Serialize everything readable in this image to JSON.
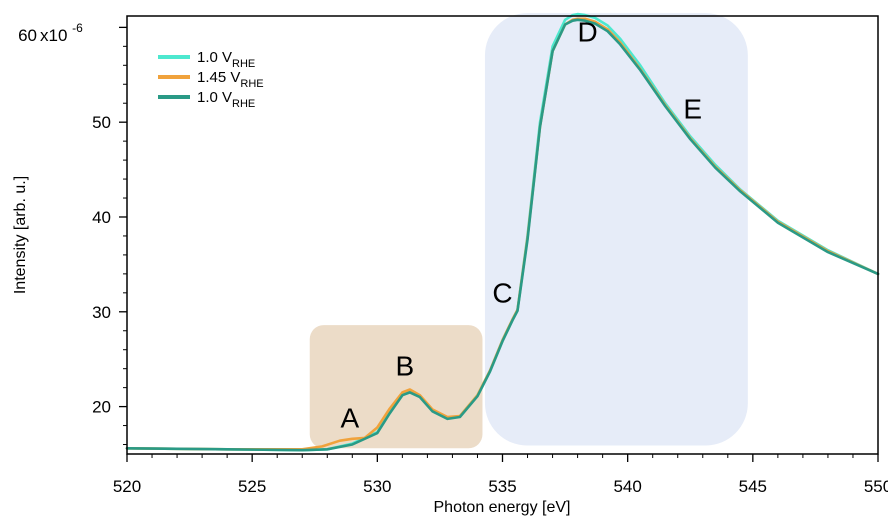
{
  "chart_data": {
    "type": "line",
    "xlabel": "Photon energy [eV]",
    "ylabel": "Intensity [arb. u.]",
    "y_multiplier_label": "x10",
    "y_multiplier_exponent": "-6",
    "xlim": [
      520,
      550
    ],
    "ylim": [
      15,
      61.2
    ],
    "x_ticks": [
      520,
      525,
      530,
      535,
      540,
      545,
      550
    ],
    "y_ticks": [
      20,
      30,
      40,
      50,
      60
    ],
    "y_tick_labels": [
      "20",
      "30",
      "40",
      "50",
      "60"
    ],
    "grid": false,
    "legend_position": "top-left",
    "series": [
      {
        "name": "1.0 V",
        "name_sub": "RHE",
        "color": "#4de8cf",
        "x": [
          520,
          524,
          527,
          528,
          529,
          530,
          530.5,
          531,
          531.3,
          531.7,
          532.2,
          532.8,
          533.3,
          534,
          534.5,
          535,
          535.4,
          535.6,
          536,
          536.5,
          537,
          537.5,
          537.8,
          538,
          538.3,
          538.7,
          539.2,
          539.7,
          540.5,
          541.5,
          542.5,
          543.5,
          544.5,
          546,
          548,
          550
        ],
        "y": [
          15.6,
          15.5,
          15.4,
          15.5,
          16.1,
          17.3,
          19.5,
          21.3,
          21.6,
          21.1,
          19.6,
          18.8,
          19.0,
          21.2,
          23.8,
          27.0,
          29.2,
          30.2,
          38.0,
          50.0,
          58.0,
          60.8,
          61.3,
          61.4,
          61.3,
          61.0,
          60.2,
          58.8,
          56.0,
          52.0,
          48.5,
          45.5,
          42.9,
          39.6,
          36.5,
          34.0
        ]
      },
      {
        "name": "1.45 V",
        "name_sub": "RHE",
        "color": "#f0a23c",
        "x": [
          520,
          524,
          527,
          527.8,
          528.5,
          529,
          529.5,
          530,
          530.5,
          531,
          531.3,
          531.7,
          532.2,
          532.8,
          533.3,
          534,
          534.5,
          535,
          535.4,
          535.6,
          536,
          536.5,
          537,
          537.5,
          537.8,
          538,
          538.3,
          538.7,
          539.2,
          539.7,
          540.5,
          541.5,
          542.5,
          543.5,
          544.5,
          546,
          548,
          550
        ],
        "y": [
          15.6,
          15.5,
          15.5,
          15.8,
          16.4,
          16.6,
          16.7,
          17.8,
          19.8,
          21.5,
          21.8,
          21.2,
          19.7,
          18.9,
          19.0,
          21.2,
          23.8,
          27.0,
          29.2,
          30.2,
          37.8,
          49.5,
          57.5,
          60.3,
          60.8,
          60.9,
          60.9,
          60.6,
          59.8,
          58.4,
          55.6,
          51.8,
          48.3,
          45.3,
          42.8,
          39.5,
          36.4,
          34.0
        ]
      },
      {
        "name": "1.0 V",
        "name_sub": "RHE",
        "color": "#2a9a86",
        "x": [
          520,
          524,
          527,
          528,
          529,
          530,
          530.5,
          531,
          531.3,
          531.7,
          532.2,
          532.8,
          533.3,
          534,
          534.5,
          535,
          535.4,
          535.6,
          536,
          536.5,
          537,
          537.5,
          537.8,
          538,
          538.3,
          538.7,
          539.2,
          539.7,
          540.5,
          541.5,
          542.5,
          543.5,
          544.5,
          546,
          548,
          550
        ],
        "y": [
          15.6,
          15.5,
          15.4,
          15.5,
          16.0,
          17.2,
          19.3,
          21.2,
          21.5,
          21.0,
          19.5,
          18.7,
          18.9,
          21.1,
          23.7,
          26.9,
          29.1,
          30.1,
          37.6,
          49.5,
          57.5,
          60.3,
          60.7,
          60.8,
          60.7,
          60.4,
          59.6,
          58.2,
          55.5,
          51.7,
          48.2,
          45.2,
          42.7,
          39.4,
          36.3,
          34.0
        ]
      }
    ],
    "regions": [
      {
        "x_range": [
          527.3,
          534.2
        ],
        "y_range": [
          15.6,
          28.6
        ],
        "color": "#ecdcc8"
      },
      {
        "x_range": [
          534.3,
          544.8
        ],
        "y_range": [
          15.9,
          61.5
        ],
        "color": "#e6ecf8"
      }
    ],
    "annotations": [
      {
        "text": "A",
        "x": 528.9,
        "y": 17.8
      },
      {
        "text": "B",
        "x": 531.1,
        "y": 23.3
      },
      {
        "text": "C",
        "x": 535.0,
        "y": 31.0
      },
      {
        "text": "D",
        "x": 538.4,
        "y": 58.5
      },
      {
        "text": "E",
        "x": 542.6,
        "y": 50.4
      }
    ]
  }
}
